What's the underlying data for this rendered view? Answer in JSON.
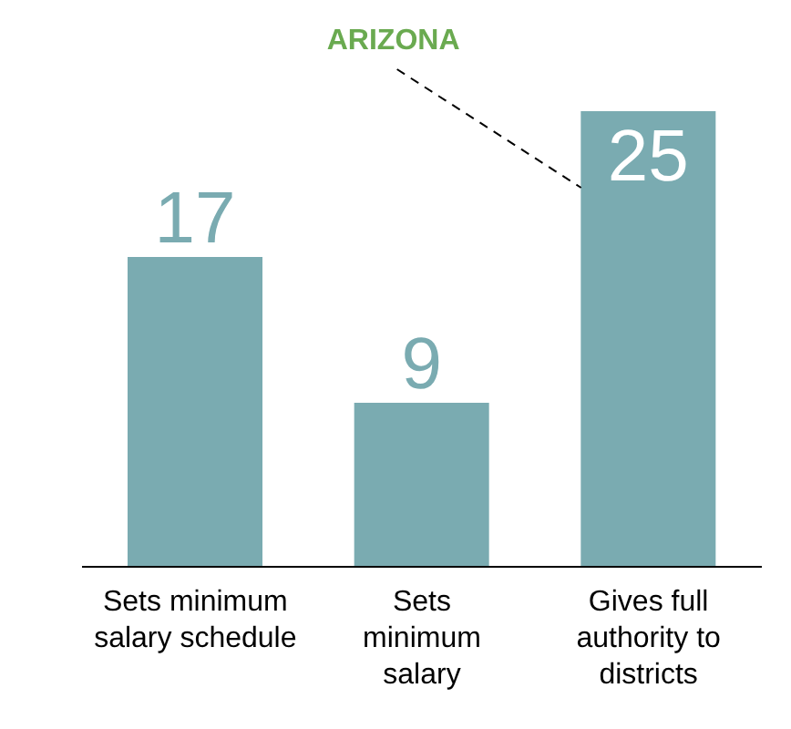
{
  "chart_data": {
    "type": "bar",
    "categories": [
      "Sets minimum salary schedule",
      "Sets minimum salary",
      "Gives full authority to districts"
    ],
    "values": [
      17,
      9,
      25
    ],
    "color": "#7aabb1",
    "ylim": [
      0,
      25
    ],
    "data_labels": true,
    "annotations": [
      "ARIZONA"
    ]
  }
}
